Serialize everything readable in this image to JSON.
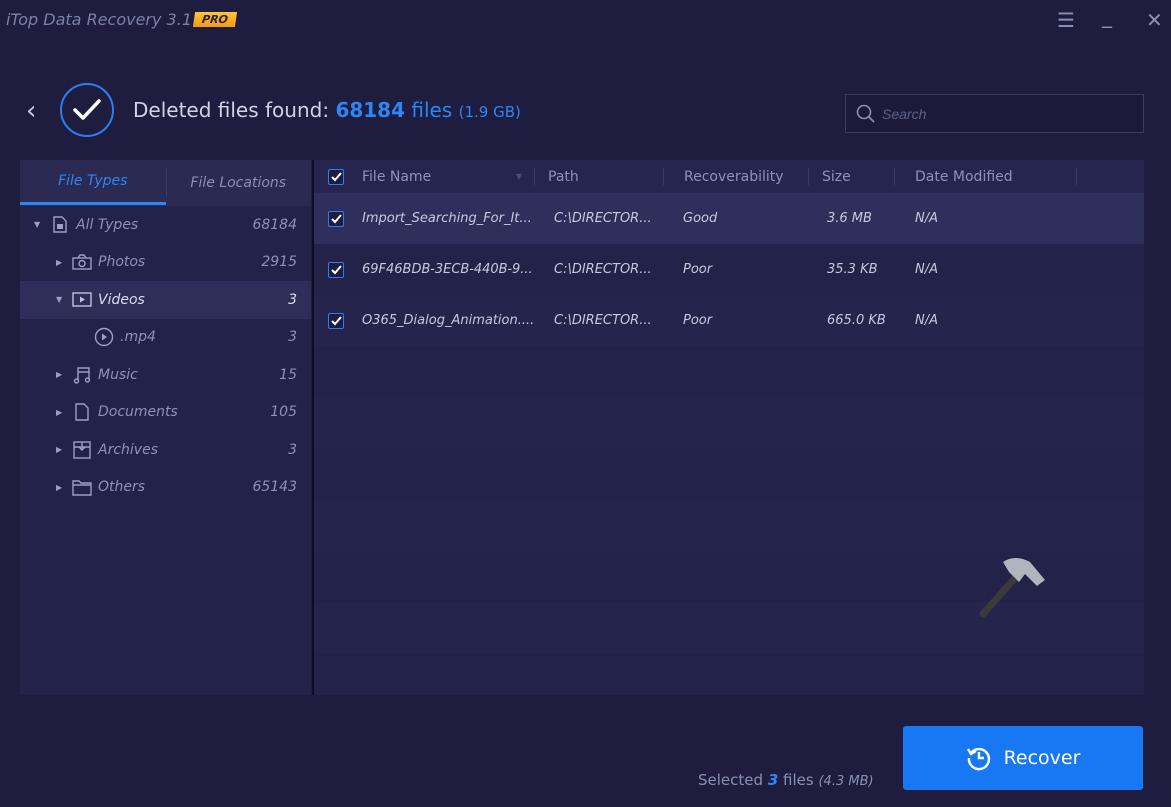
{
  "app": {
    "title": "iTop Data Recovery 3.1",
    "badge": "PRO"
  },
  "window": {
    "menu_icon": "hamburger-icon",
    "minimize_icon": "minimize-icon",
    "close_icon": "close-icon"
  },
  "header": {
    "prefix": "Deleted files found:",
    "count": "68184",
    "files_word": "files",
    "size": "(1.9 GB)"
  },
  "search": {
    "placeholder": "Search",
    "value": ""
  },
  "sidebar": {
    "tabs": [
      {
        "label": "File Types",
        "active": true
      },
      {
        "label": "File Locations",
        "active": false
      }
    ],
    "items": [
      {
        "label": "All Types",
        "count": "68184",
        "icon": "document-icon",
        "expanded": true,
        "level": 0
      },
      {
        "label": "Photos",
        "count": "2915",
        "icon": "camera-icon",
        "expanded": false,
        "level": 1
      },
      {
        "label": "Videos",
        "count": "3",
        "icon": "video-icon",
        "expanded": true,
        "level": 1,
        "selected": true
      },
      {
        "label": ".mp4",
        "count": "3",
        "icon": "play-circle-icon",
        "level": 2
      },
      {
        "label": "Music",
        "count": "15",
        "icon": "music-icon",
        "expanded": false,
        "level": 1
      },
      {
        "label": "Documents",
        "count": "105",
        "icon": "file-icon",
        "expanded": false,
        "level": 1
      },
      {
        "label": "Archives",
        "count": "3",
        "icon": "archive-icon",
        "expanded": false,
        "level": 1
      },
      {
        "label": "Others",
        "count": "65143",
        "icon": "folder-icon",
        "expanded": false,
        "level": 1
      }
    ]
  },
  "table": {
    "columns": [
      "File Name",
      "Path",
      "Recoverability",
      "Size",
      "Date Modified"
    ],
    "all_checked": true,
    "rows": [
      {
        "name": "Import_Searching_For_It...",
        "path": "C:\\DIRECTOR...",
        "recoverability": "Good",
        "size": "3.6 MB",
        "date": "N/A",
        "checked": true
      },
      {
        "name": "69F46BDB-3ECB-440B-9...",
        "path": "C:\\DIRECTOR...",
        "recoverability": "Poor",
        "size": "35.3 KB",
        "date": "N/A",
        "checked": true
      },
      {
        "name": "O365_Dialog_Animation....",
        "path": "C:\\DIRECTOR...",
        "recoverability": "Poor",
        "size": "665.0 KB",
        "date": "N/A",
        "checked": true
      }
    ]
  },
  "footer": {
    "selected_prefix": "Selected",
    "selected_count": "3",
    "files_word": "files",
    "selected_size": "(4.3 MB)",
    "recover_label": "Recover"
  },
  "colors": {
    "accent": "#1878f3",
    "background": "#1e1d3f",
    "badge": "#f5b025"
  }
}
